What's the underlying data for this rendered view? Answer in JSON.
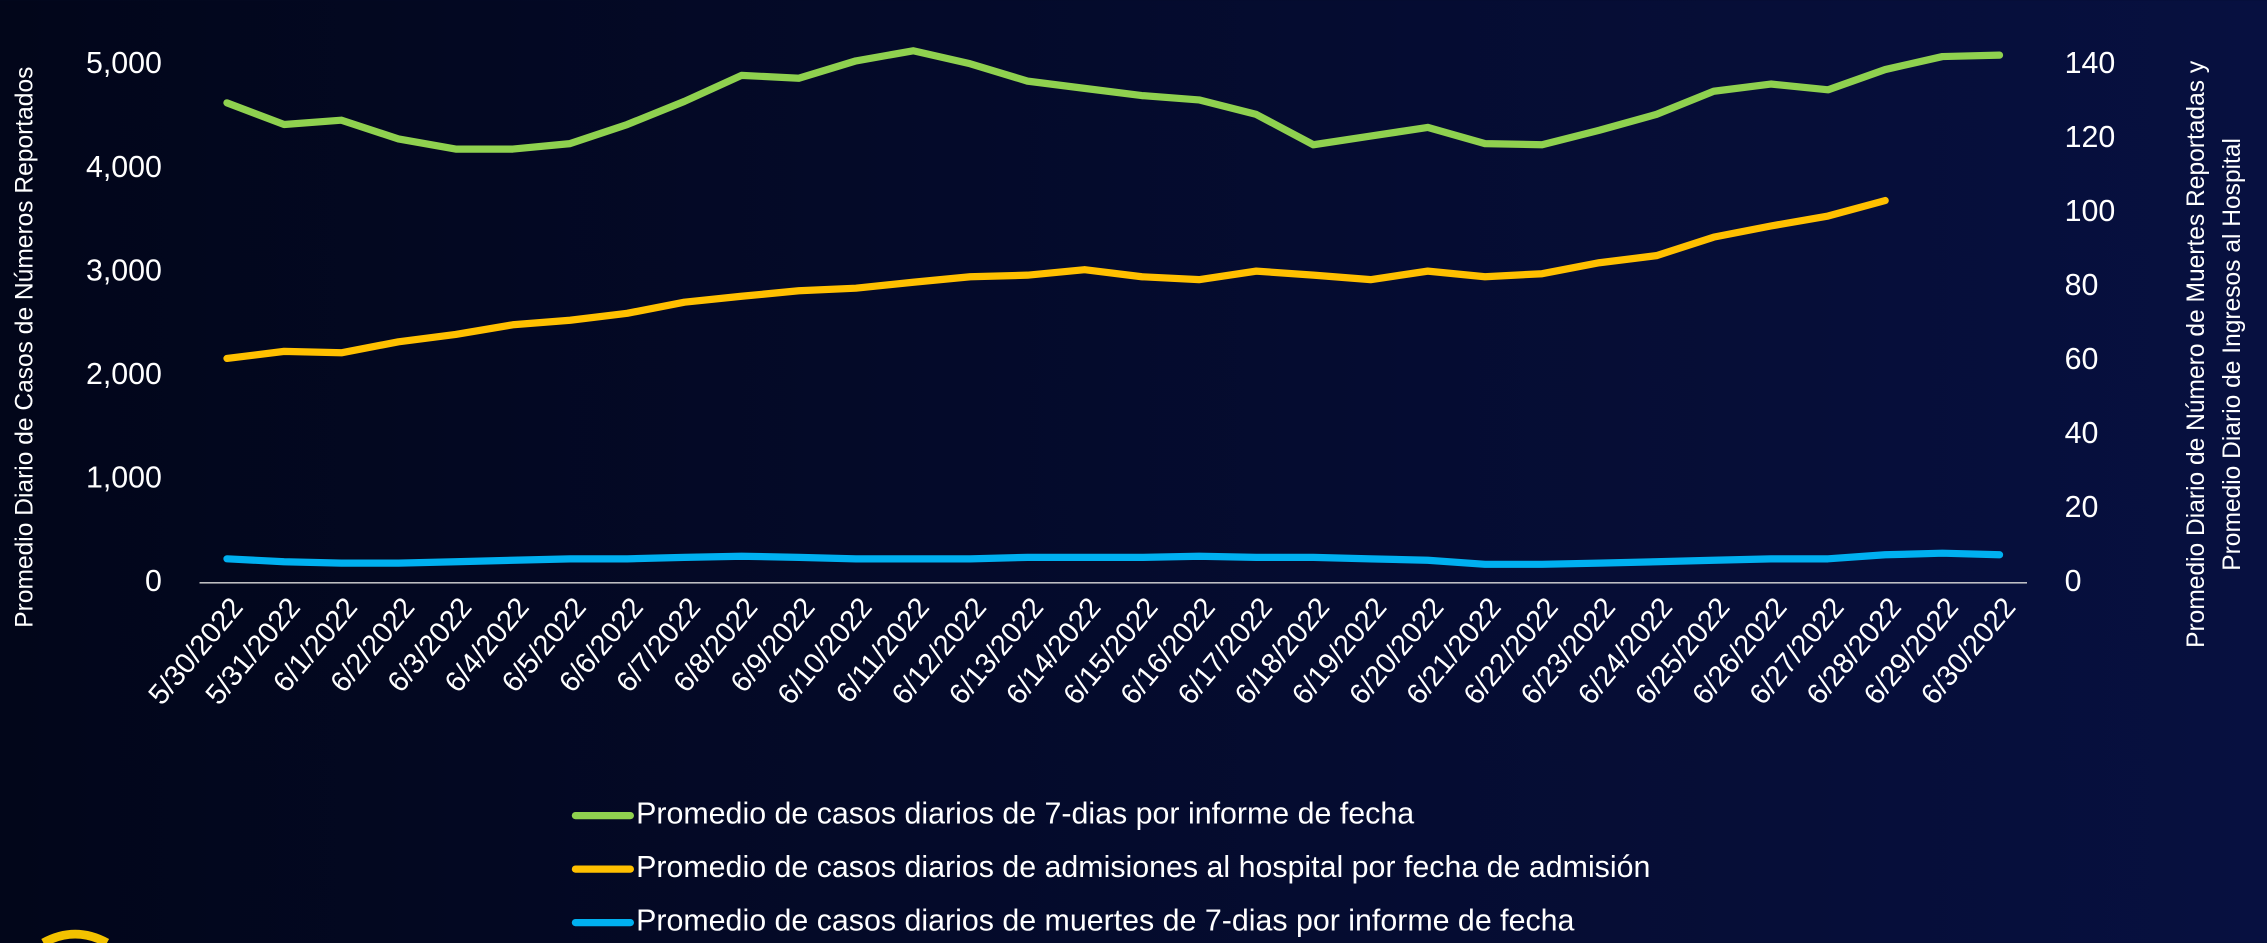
{
  "chart_data": {
    "type": "line",
    "categories": [
      "5/30/2022",
      "5/31/2022",
      "6/1/2022",
      "6/2/2022",
      "6/3/2022",
      "6/4/2022",
      "6/5/2022",
      "6/6/2022",
      "6/7/2022",
      "6/8/2022",
      "6/9/2022",
      "6/10/2022",
      "6/11/2022",
      "6/12/2022",
      "6/13/2022",
      "6/14/2022",
      "6/15/2022",
      "6/16/2022",
      "6/17/2022",
      "6/18/2022",
      "6/19/2022",
      "6/20/2022",
      "6/21/2022",
      "6/22/2022",
      "6/23/2022",
      "6/24/2022",
      "6/25/2022",
      "6/26/2022",
      "6/27/2022",
      "6/28/2022",
      "6/29/2022",
      "6/30/2022"
    ],
    "series": [
      {
        "name": "Promedio de casos diarios de 7-dias por informe de fecha",
        "color": "#8fd14f",
        "axis": "y",
        "values": [
          4637,
          4427,
          4469,
          4288,
          4190,
          4190,
          4243,
          4427,
          4651,
          4902,
          4874,
          5042,
          5140,
          5014,
          4846,
          4777,
          4707,
          4665,
          4525,
          4232,
          4316,
          4400,
          4243,
          4232,
          4372,
          4525,
          4749,
          4818,
          4763,
          4958,
          5084,
          5098
        ]
      },
      {
        "name": "Promedio de casos diarios de admisiones al hospital por fecha de admisión",
        "color": "#ffc000",
        "axis": "y2",
        "values": [
          60.7,
          62.6,
          62.2,
          65.2,
          67.2,
          69.8,
          71.0,
          72.9,
          75.9,
          77.5,
          79.0,
          79.7,
          81.3,
          82.8,
          83.2,
          84.7,
          82.8,
          82.0,
          84.3,
          83.2,
          82.0,
          84.3,
          82.8,
          83.6,
          86.6,
          88.5,
          93.5,
          96.5,
          99.2,
          103.4,
          null,
          null
        ]
      },
      {
        "name": "Promedio de casos diarios de muertes de 7-dias por informe de fecha",
        "color": "#00b0f0",
        "axis": "y2",
        "values": [
          6.5,
          5.7,
          5.3,
          5.3,
          5.7,
          6.1,
          6.5,
          6.5,
          6.9,
          7.2,
          6.9,
          6.5,
          6.5,
          6.5,
          6.9,
          6.9,
          6.9,
          7.2,
          6.9,
          6.9,
          6.5,
          6.1,
          5.0,
          5.0,
          5.3,
          5.7,
          6.1,
          6.5,
          6.5,
          7.6,
          8.0,
          7.6
        ]
      }
    ],
    "y_label": "Promedio Diario de Casos de Números Reportados",
    "y2_label": [
      "Promedio Diario de Número de Muertes Reportadas y",
      "Promedio  Diario de Ingresos al Hospital"
    ],
    "ylim": [
      0,
      5000
    ],
    "yticks": [
      0,
      {
        "value": 1000,
        "label": "1,000"
      },
      {
        "value": 2000,
        "label": "2,000"
      },
      {
        "value": 3000,
        "label": "3,000"
      },
      {
        "value": 4000,
        "label": "4,000"
      },
      {
        "value": 5000,
        "label": "5,000"
      }
    ],
    "y2lim": [
      0,
      140
    ],
    "y2ticks": [
      0,
      20,
      40,
      60,
      80,
      100,
      120,
      140
    ]
  }
}
